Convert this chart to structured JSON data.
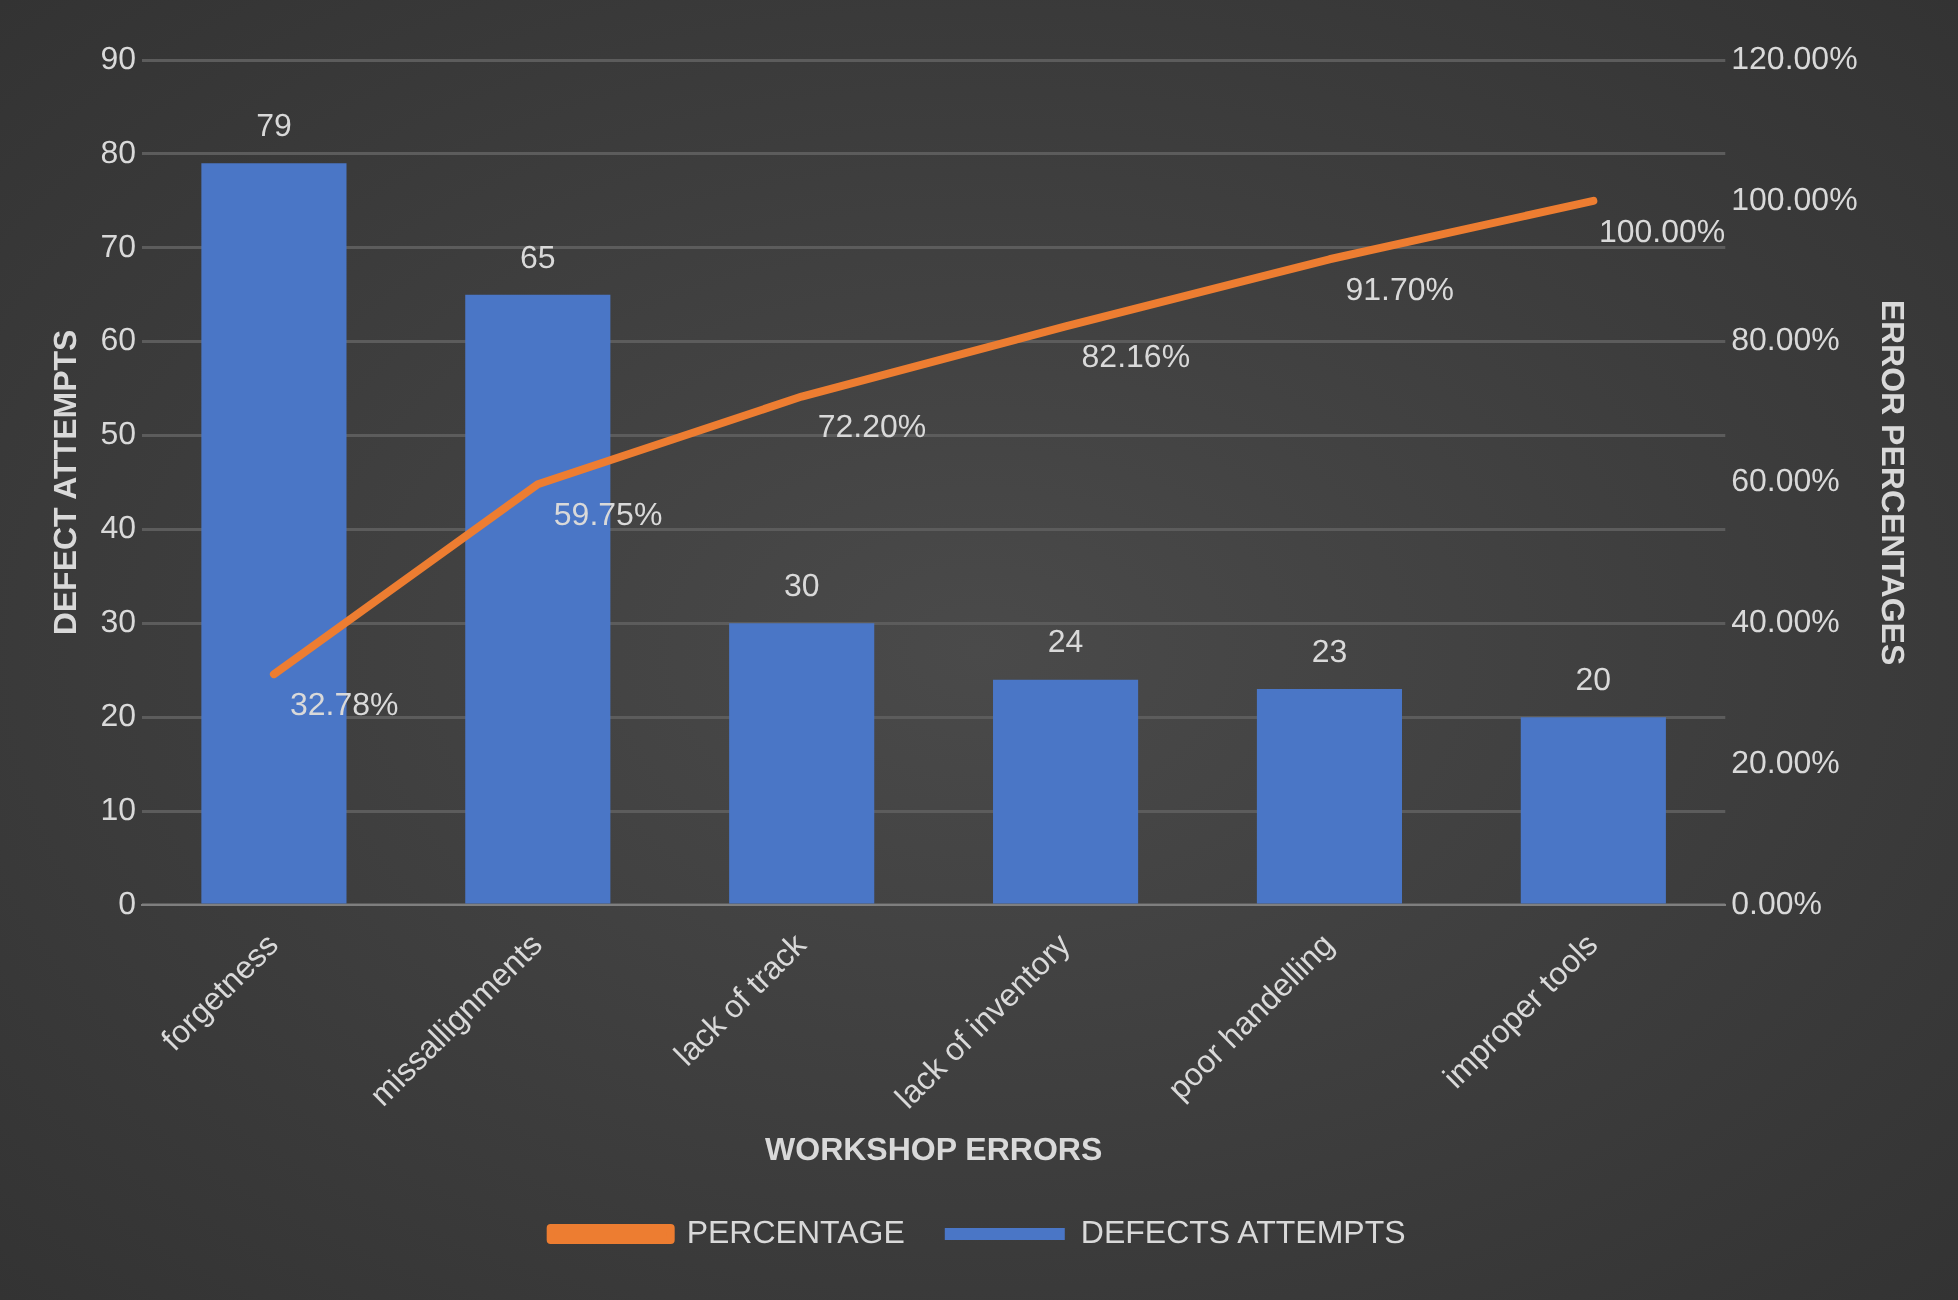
{
  "chart_data": {
    "type": "bar",
    "xlabel": "WORKSHOP ERRORS",
    "ylabel": "DEFECT ATTEMPTS",
    "y2label": "ERROR PERCENTAGES",
    "categories": [
      "forgetness",
      "missallignments",
      "lack of track",
      "lack of inventory",
      "poor handelling",
      "improper tools"
    ],
    "series": [
      {
        "name": "DEFECTS ATTEMPTS",
        "color": "#4a76c6",
        "values": [
          79,
          65,
          30,
          24,
          23,
          20
        ],
        "value_labels": [
          "79",
          "65",
          "30",
          "24",
          "23",
          "20"
        ]
      },
      {
        "name": "PERCENTAGE",
        "type": "line",
        "axis": "y2",
        "color": "#ed7d31",
        "marker": "none",
        "values": [
          32.78,
          59.75,
          72.2,
          82.16,
          91.7,
          100
        ],
        "value_labels": [
          "32.78%",
          "59.75%",
          "72.20%",
          "82.16%",
          "91.70%",
          "100.00%"
        ]
      }
    ],
    "ylim": [
      0,
      90
    ],
    "yticks": [
      0,
      10,
      20,
      30,
      40,
      50,
      60,
      70,
      80,
      90
    ],
    "y2lim": [
      0,
      120
    ],
    "y2ticks": [
      {
        "value": 0,
        "label": "0.00%"
      },
      {
        "value": 20,
        "label": "20.00%"
      },
      {
        "value": 40,
        "label": "40.00%"
      },
      {
        "value": 60,
        "label": "60.00%"
      },
      {
        "value": 80,
        "label": "80.00%"
      },
      {
        "value": 100,
        "label": "100.00%"
      },
      {
        "value": 120,
        "label": "120.00%"
      }
    ],
    "grid": "y",
    "legend": "bottom"
  }
}
